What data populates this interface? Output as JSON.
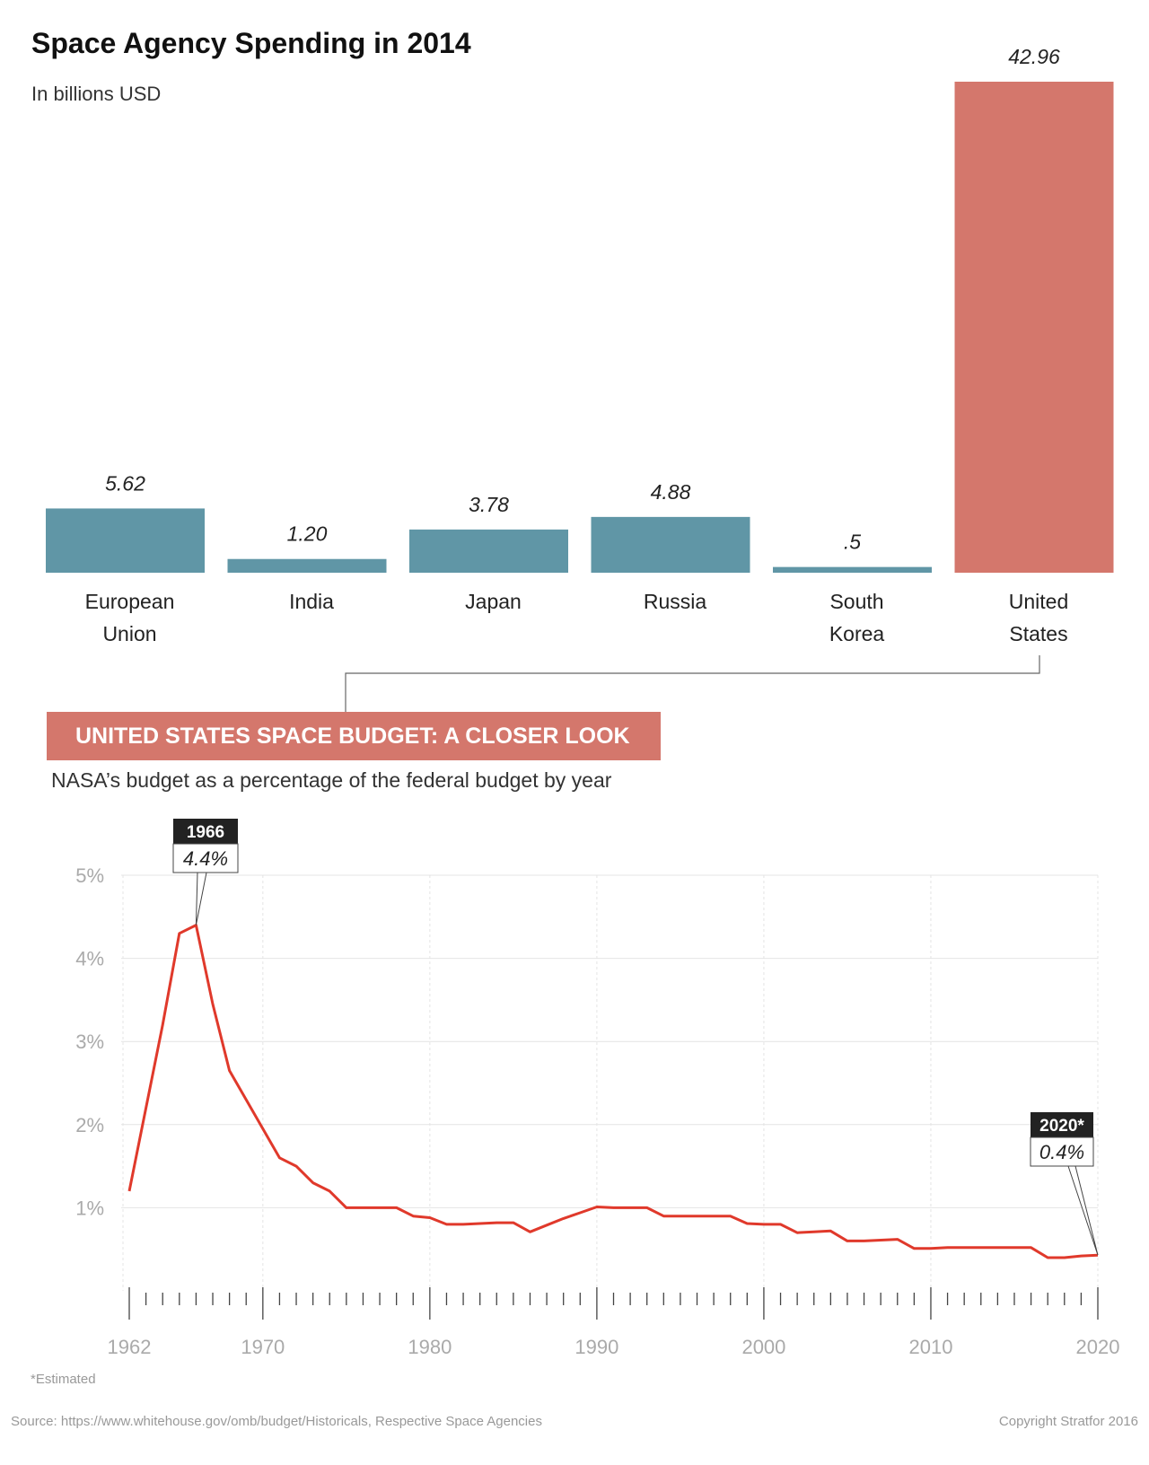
{
  "header": {
    "title": "Space Agency Spending in 2014",
    "subtitle": "In billions USD"
  },
  "section": {
    "banner": "UNITED STATES SPACE BUDGET: A CLOSER LOOK",
    "subtitle": "NASA’s budget as a percentage of the federal budget by year"
  },
  "footer": {
    "footnote": "*Estimated",
    "source": "Source: https://www.whitehouse.gov/omb/budget/Historicals, Respective Space Agencies",
    "copyright": "Copyright Stratfor 2016"
  },
  "colors": {
    "bar_default": "#6096a6",
    "bar_highlight": "#d4776c",
    "line": "#e0392b",
    "grid": "#e4e4e4",
    "banner": "#d4776c",
    "callout_year_bg": "#222222"
  },
  "chart_data": [
    {
      "type": "bar",
      "title": "Space Agency Spending in 2014",
      "subtitle": "In billions USD",
      "categories": [
        [
          "European",
          "Union"
        ],
        [
          "India"
        ],
        [
          "Japan"
        ],
        [
          "Russia"
        ],
        [
          "South",
          "Korea"
        ],
        [
          "United",
          "States"
        ]
      ],
      "values": [
        5.62,
        1.2,
        3.78,
        4.88,
        0.5,
        42.96
      ],
      "value_labels": [
        "5.62",
        "1.20",
        "3.78",
        "4.88",
        ".5",
        "42.96"
      ],
      "highlight_index": 5,
      "ylim": [
        0,
        42.96
      ],
      "grid": false
    },
    {
      "type": "line",
      "title": "UNITED STATES SPACE BUDGET: A CLOSER LOOK",
      "subtitle": "NASA’s budget as a percentage of the federal budget by year",
      "ylabel": "",
      "xlabel": "",
      "ylim": [
        0,
        5
      ],
      "xlim": [
        1962,
        2020
      ],
      "y_ticks": [
        1,
        2,
        3,
        4,
        5
      ],
      "y_tick_labels": [
        "1%",
        "2%",
        "3%",
        "4%",
        "5%"
      ],
      "x_ticks": [
        1962,
        1970,
        1980,
        1990,
        2000,
        2010,
        2020
      ],
      "x_tick_labels": [
        "1962",
        "1970",
        "1980",
        "1990",
        "2000",
        "2010",
        "2020"
      ],
      "grid": true,
      "x": [
        1962,
        1963,
        1964,
        1965,
        1966,
        1967,
        1968,
        1969,
        1970,
        1971,
        1972,
        1973,
        1974,
        1975,
        1976,
        1977,
        1978,
        1979,
        1980,
        1981,
        1982,
        1983,
        1984,
        1985,
        1986,
        1987,
        1988,
        1989,
        1990,
        1991,
        1992,
        1993,
        1994,
        1995,
        1996,
        1997,
        1998,
        1999,
        2000,
        2001,
        2002,
        2003,
        2004,
        2005,
        2006,
        2007,
        2008,
        2009,
        2010,
        2011,
        2012,
        2013,
        2014,
        2015,
        2016,
        2017,
        2018,
        2019,
        2020
      ],
      "y": [
        1.2,
        2.2,
        3.2,
        4.3,
        4.4,
        3.45,
        2.65,
        2.3,
        1.95,
        1.6,
        1.5,
        1.3,
        1.2,
        1.0,
        1.0,
        1.0,
        1.0,
        0.9,
        0.88,
        0.8,
        0.8,
        0.81,
        0.82,
        0.82,
        0.71,
        0.79,
        0.87,
        0.94,
        1.01,
        1.0,
        1.0,
        1.0,
        0.9,
        0.9,
        0.9,
        0.9,
        0.9,
        0.81,
        0.8,
        0.8,
        0.7,
        0.71,
        0.72,
        0.6,
        0.6,
        0.61,
        0.62,
        0.51,
        0.51,
        0.52,
        0.52,
        0.52,
        0.52,
        0.52,
        0.52,
        0.4,
        0.4,
        0.42,
        0.43
      ],
      "annotations": [
        {
          "year_label": "1966",
          "value_label": "4.4%",
          "x": 1966,
          "y": 4.4
        },
        {
          "year_label": "2020*",
          "value_label": "0.4%",
          "x": 2020,
          "y": 0.43
        }
      ]
    }
  ]
}
